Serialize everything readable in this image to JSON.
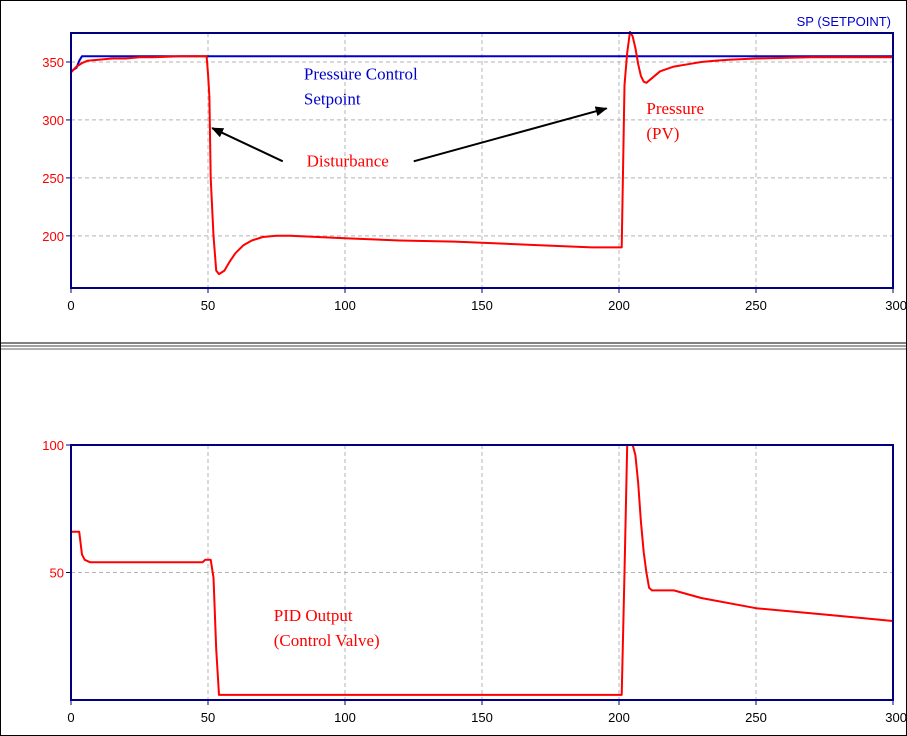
{
  "colors": {
    "setpoint": "#0000cc",
    "pv": "#ff0000",
    "output": "#ff0000",
    "axis_frame": "#000080",
    "grid": "#b4b4b4",
    "y_tick_text": "#ff0000",
    "x_tick_text": "#000000"
  },
  "chart_data": [
    {
      "type": "line",
      "corner_label": "SP (SETPOINT)",
      "xlim": [
        0,
        300
      ],
      "ylim": [
        155,
        375
      ],
      "x_ticks": [
        0,
        50,
        100,
        150,
        200,
        250,
        300
      ],
      "y_ticks": [
        200,
        250,
        300,
        350
      ],
      "grid": true,
      "series": [
        {
          "key": "setpoint",
          "x": [
            0,
            2,
            3,
            4,
            300
          ],
          "y": [
            342,
            345,
            351,
            355,
            355
          ]
        },
        {
          "key": "pv",
          "x": [
            0,
            2,
            4,
            6,
            10,
            15,
            18,
            20,
            25,
            30,
            40,
            49.5,
            50,
            50.5,
            51,
            52,
            53,
            54,
            56,
            58,
            60,
            63,
            66,
            70,
            75,
            80,
            90,
            100,
            120,
            140,
            150,
            170,
            190,
            201,
            201.5,
            202,
            203,
            204,
            205,
            206,
            207,
            208,
            209,
            210,
            212,
            215,
            220,
            225,
            230,
            235,
            240,
            250,
            270,
            300
          ],
          "y": [
            341,
            346,
            349,
            351,
            352,
            353,
            353,
            353,
            354,
            354,
            355,
            355,
            340,
            320,
            250,
            200,
            170,
            167,
            170,
            178,
            185,
            192,
            196,
            199,
            200,
            200,
            199,
            198,
            196,
            195,
            194,
            192,
            190,
            190,
            260,
            330,
            358,
            376,
            372,
            362,
            348,
            338,
            333,
            332,
            336,
            342,
            346,
            348,
            350,
            351,
            352,
            353,
            354,
            354
          ]
        }
      ],
      "annotations": [
        {
          "key": "setpoint_label",
          "lines": [
            "Pressure Control",
            "Setpoint"
          ]
        },
        {
          "key": "pv_label",
          "lines": [
            "Pressure",
            "(PV)"
          ]
        },
        {
          "key": "disturbance",
          "text": "Disturbance"
        }
      ]
    },
    {
      "type": "line",
      "xlim": [
        0,
        300
      ],
      "ylim": [
        0,
        100
      ],
      "x_ticks": [
        0,
        50,
        100,
        150,
        200,
        250,
        300
      ],
      "y_ticks": [
        50,
        100
      ],
      "grid": true,
      "series": [
        {
          "key": "output",
          "x": [
            0,
            3,
            4,
            5,
            7,
            10,
            20,
            30,
            40,
            48,
            49,
            51,
            52,
            53,
            54,
            55,
            100,
            150,
            200,
            201,
            202,
            203,
            204,
            205,
            206,
            207,
            208,
            209,
            210,
            211,
            212,
            215,
            220,
            230,
            250,
            270,
            290,
            300
          ],
          "y": [
            66,
            66,
            57,
            55,
            54,
            54,
            54,
            54,
            54,
            54,
            55,
            55,
            48,
            20,
            2,
            2,
            2,
            2,
            2,
            2,
            50,
            100,
            100,
            100,
            96,
            85,
            70,
            58,
            50,
            44,
            43,
            43,
            43,
            40,
            36,
            34,
            32,
            31
          ]
        }
      ],
      "annotations": [
        {
          "key": "output_label",
          "lines": [
            "PID Output",
            "(Control Valve)"
          ]
        }
      ]
    }
  ]
}
